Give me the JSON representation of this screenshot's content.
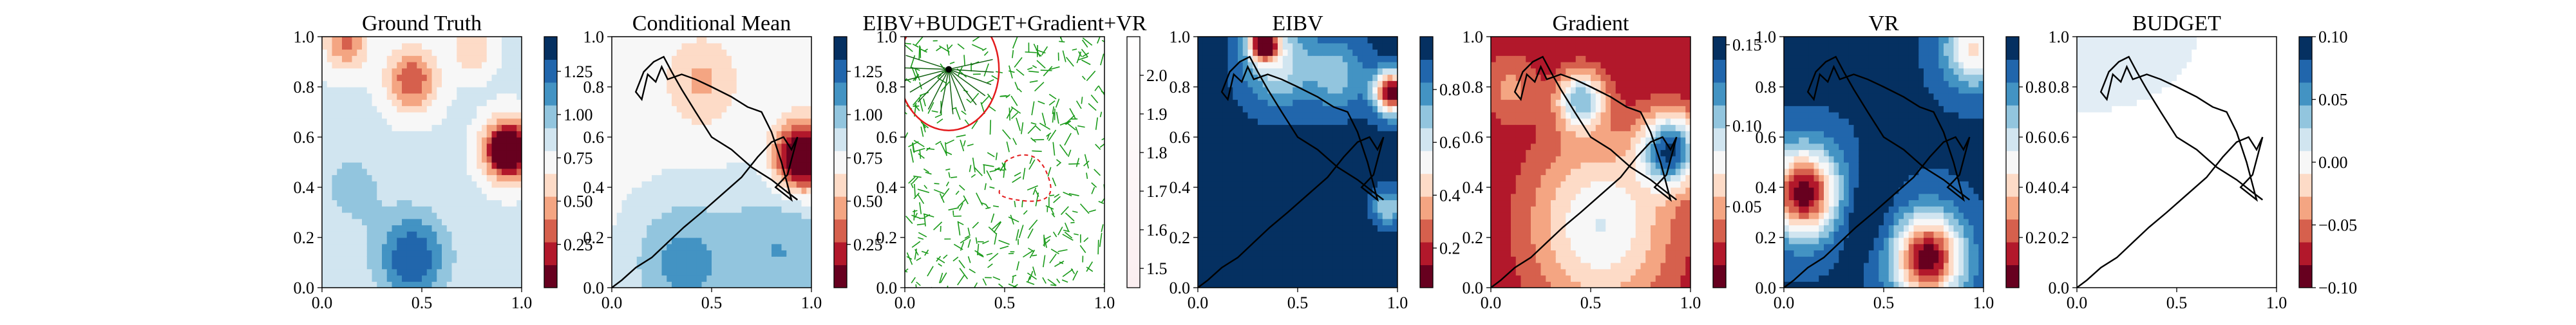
{
  "figure": {
    "panel_titles": [
      "Ground Truth",
      "Conditional Mean",
      "EIBV+BUDGET+Gradient+VR",
      "EIBV",
      "Gradient",
      "VR",
      "BUDGET"
    ]
  },
  "chart_data": [
    {
      "type": "heatmap",
      "title": "Ground Truth",
      "xlim": [
        0,
        1
      ],
      "ylim": [
        0,
        1
      ],
      "x_ticks": [
        "0.0",
        "0.5",
        "1.0"
      ],
      "y_ticks": [
        "0.0",
        "0.2",
        "0.4",
        "0.6",
        "0.8",
        "1.0"
      ],
      "colormap": "RdBu",
      "colorbar_range": [
        0.0,
        1.45
      ],
      "colorbar_ticks": [
        "0.25",
        "0.50",
        "0.75",
        "1.00",
        "1.25"
      ],
      "bumps": [
        {
          "x": 0.93,
          "y": 0.55,
          "s": 0.08,
          "a": -1.1
        },
        {
          "x": 0.45,
          "y": 0.83,
          "s": 0.09,
          "a": -0.55
        },
        {
          "x": 0.12,
          "y": 0.98,
          "s": 0.08,
          "a": -0.45
        },
        {
          "x": 0.75,
          "y": 0.95,
          "s": 0.07,
          "a": -0.3
        },
        {
          "x": 0.45,
          "y": 0.12,
          "s": 0.12,
          "a": 0.5
        },
        {
          "x": 0.15,
          "y": 0.4,
          "s": 0.12,
          "a": 0.15
        }
      ],
      "base": 0.82
    },
    {
      "type": "heatmap",
      "title": "Conditional Mean",
      "xlim": [
        0,
        1
      ],
      "ylim": [
        0,
        1
      ],
      "x_ticks": [
        "0.0",
        "0.5",
        "1.0"
      ],
      "y_ticks": [
        "0.0",
        "0.2",
        "0.4",
        "0.6",
        "0.8",
        "1.0"
      ],
      "colormap": "RdBu",
      "colorbar_range": [
        0.0,
        1.45
      ],
      "colorbar_ticks": [
        "0.25",
        "0.50",
        "0.75",
        "1.00",
        "1.25"
      ],
      "bumps": [
        {
          "x": 0.95,
          "y": 0.52,
          "s": 0.09,
          "a": -1.05
        },
        {
          "x": 0.45,
          "y": 0.82,
          "s": 0.12,
          "a": -0.25
        },
        {
          "x": 0.35,
          "y": 0.1,
          "s": 0.18,
          "a": 0.35
        },
        {
          "x": 0.85,
          "y": 0.15,
          "s": 0.2,
          "a": 0.3
        }
      ],
      "base": 0.75,
      "path": true
    },
    {
      "type": "scatter",
      "title": "EIBV+BUDGET+Gradient+VR",
      "xlim": [
        0,
        1
      ],
      "ylim": [
        0,
        1
      ],
      "x_ticks": [
        "0.0",
        "0.5",
        "1.0"
      ],
      "y_ticks": [
        "0.0",
        "0.2",
        "0.4",
        "0.6",
        "0.8",
        "1.0"
      ],
      "colorbar_range": [
        1.45,
        2.1
      ],
      "colorbar_ticks": [
        "1.5",
        "1.6",
        "1.7",
        "1.8",
        "1.9",
        "2.0"
      ],
      "colorbar_colors": [
        "#fbeef0",
        "#ffffff"
      ],
      "current_location": {
        "x": 0.22,
        "y": 0.87
      }
    },
    {
      "type": "heatmap",
      "title": "EIBV",
      "xlim": [
        0,
        1
      ],
      "ylim": [
        0,
        1
      ],
      "x_ticks": [
        "0.0",
        "0.5",
        "1.0"
      ],
      "y_ticks": [
        "0.0",
        "0.2",
        "0.4",
        "0.6",
        "0.8",
        "1.0"
      ],
      "colormap": "RdBu",
      "colorbar_range": [
        0.05,
        1.0
      ],
      "colorbar_ticks": [
        "0.2",
        "0.4",
        "0.6",
        "0.8"
      ],
      "bumps": [
        {
          "x": 0.33,
          "y": 0.98,
          "s": 0.05,
          "a": -0.9
        },
        {
          "x": 0.97,
          "y": 0.78,
          "s": 0.06,
          "a": -0.9
        },
        {
          "x": 0.4,
          "y": 0.9,
          "s": 0.12,
          "a": -0.35
        },
        {
          "x": 0.7,
          "y": 0.85,
          "s": 0.1,
          "a": -0.25
        },
        {
          "x": 0.95,
          "y": 0.32,
          "s": 0.05,
          "a": -0.3
        }
      ],
      "base": 0.95,
      "path": true
    },
    {
      "type": "heatmap",
      "title": "Gradient",
      "xlim": [
        0,
        1
      ],
      "ylim": [
        0,
        1
      ],
      "x_ticks": [
        "0.0",
        "0.5",
        "1.0"
      ],
      "y_ticks": [
        "0.0",
        "0.2",
        "0.4",
        "0.6",
        "0.8",
        "1.0"
      ],
      "colormap": "RdBu",
      "colorbar_range": [
        0.0,
        0.155
      ],
      "colorbar_ticks": [
        "0.05",
        "0.10",
        "0.15"
      ],
      "bumps": [
        {
          "x": 0.9,
          "y": 0.55,
          "s": 0.1,
          "a": 0.12
        },
        {
          "x": 0.45,
          "y": 0.75,
          "s": 0.08,
          "a": 0.09
        },
        {
          "x": 0.55,
          "y": 0.25,
          "s": 0.25,
          "a": 0.07
        },
        {
          "x": 0.1,
          "y": 0.8,
          "s": 0.1,
          "a": 0.03
        }
      ],
      "base": 0.015,
      "path": true
    },
    {
      "type": "heatmap",
      "title": "VR",
      "xlim": [
        0,
        1
      ],
      "ylim": [
        0,
        1
      ],
      "x_ticks": [
        "0.0",
        "0.5",
        "1.0"
      ],
      "y_ticks": [
        "0.0",
        "0.2",
        "0.4",
        "0.6",
        "0.8",
        "1.0"
      ],
      "colormap": "RdBu",
      "colorbar_range": [
        0.0,
        1.0
      ],
      "colorbar_ticks": [
        "0.2",
        "0.4",
        "0.6",
        "0.8"
      ],
      "bumps": [
        {
          "x": 0.1,
          "y": 0.38,
          "s": 0.12,
          "a": -0.9
        },
        {
          "x": 0.72,
          "y": 0.12,
          "s": 0.12,
          "a": -0.9
        },
        {
          "x": 0.95,
          "y": 0.95,
          "s": 0.1,
          "a": -0.5
        },
        {
          "x": 0.4,
          "y": 0.3,
          "s": 0.12,
          "a": 0.1
        }
      ],
      "base": 0.92,
      "path": true
    },
    {
      "type": "heatmap",
      "title": "BUDGET",
      "xlim": [
        0,
        1
      ],
      "ylim": [
        0,
        1
      ],
      "x_ticks": [
        "0.0",
        "0.5",
        "1.0"
      ],
      "y_ticks": [
        "0.0",
        "0.2",
        "0.4",
        "0.6",
        "0.8",
        "1.0"
      ],
      "colormap": "RdBu",
      "colorbar_range": [
        -0.1,
        0.1
      ],
      "colorbar_ticks": [
        "−0.10",
        "−0.05",
        "0.00",
        "0.05",
        "0.10"
      ],
      "budget_region": true,
      "path": true
    }
  ],
  "colors": {
    "rdbu": [
      "#67001f",
      "#b2182b",
      "#d6604d",
      "#f4a582",
      "#fddbc7",
      "#f7f7f7",
      "#d1e5f0",
      "#92c5de",
      "#4393c3",
      "#2166ac",
      "#053061"
    ],
    "path": "#000000",
    "graph_edges": "#1a9a1a",
    "budget_ellipse": "#e31a1c"
  }
}
